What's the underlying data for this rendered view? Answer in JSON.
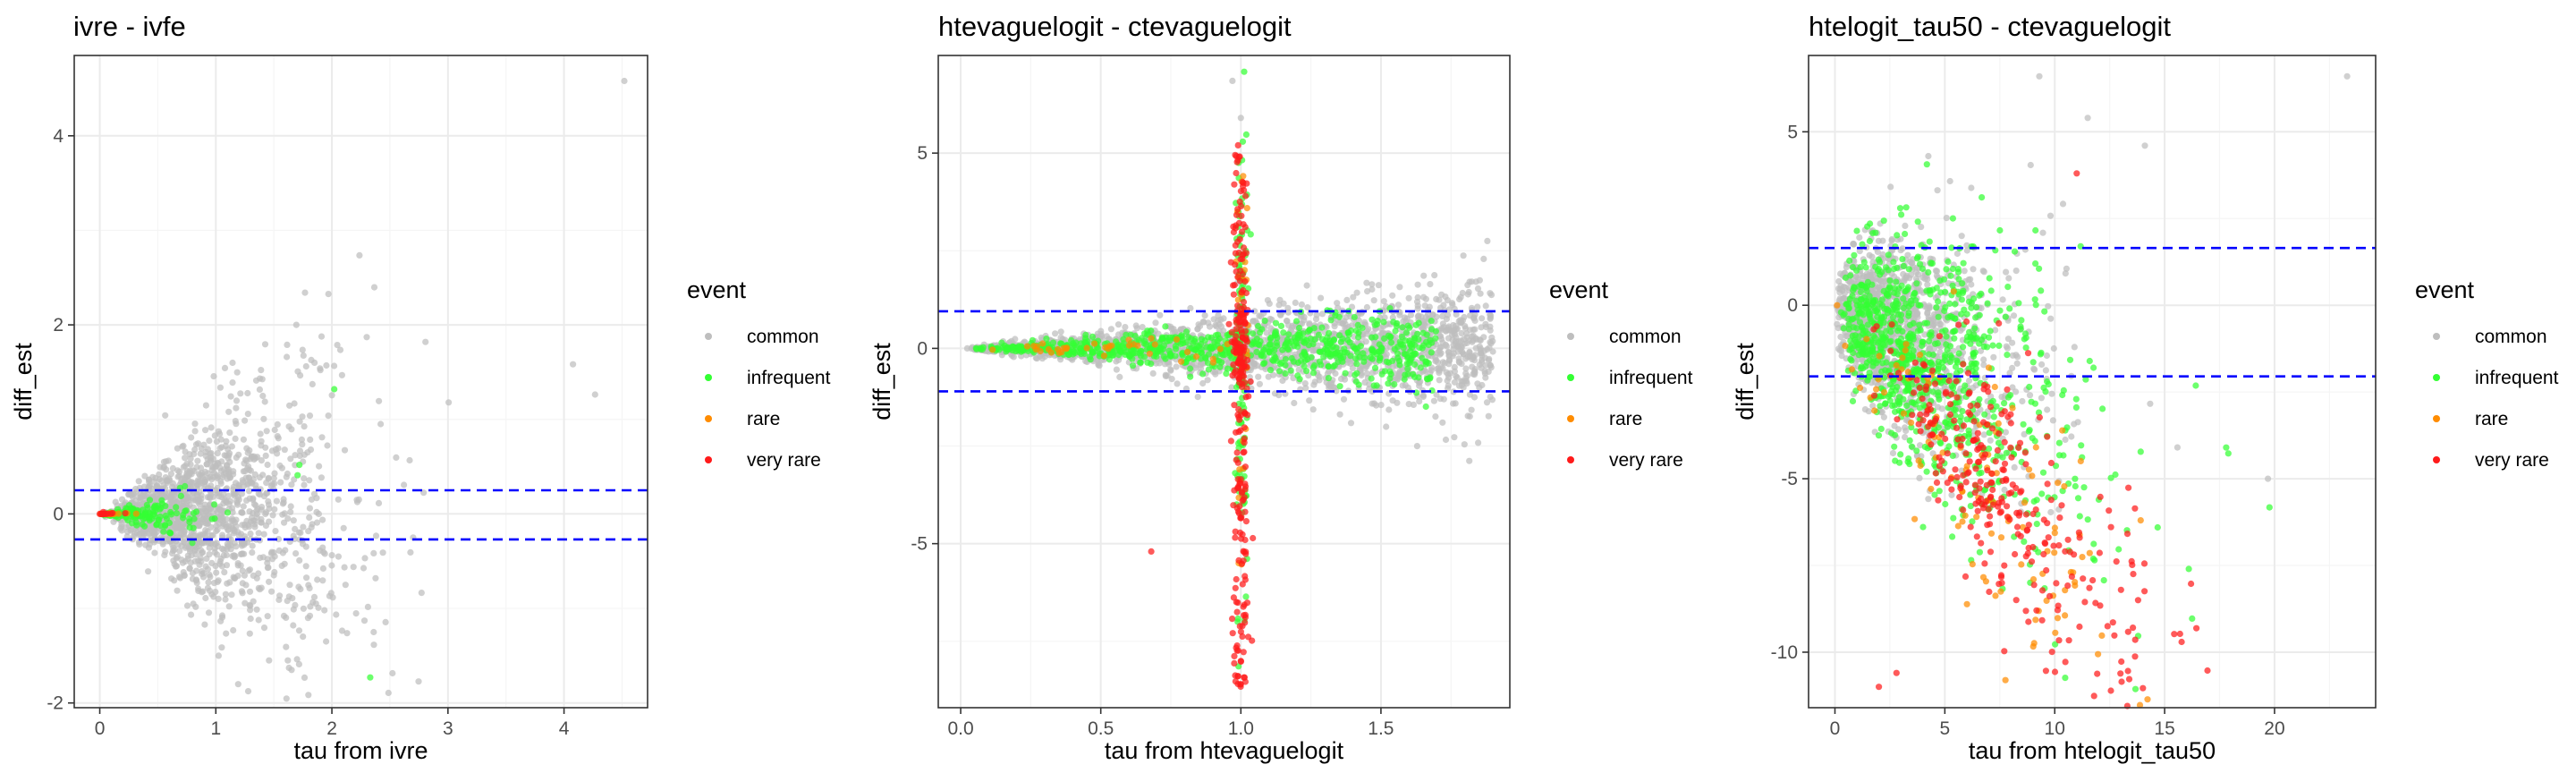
{
  "legend": {
    "title": "event",
    "entries": [
      {
        "label": "common",
        "color": "#bebebe"
      },
      {
        "label": "infrequent",
        "color": "#33ff33"
      },
      {
        "label": "rare",
        "color": "#ff8c00"
      },
      {
        "label": "very rare",
        "color": "#ff1a1a"
      }
    ]
  },
  "colors": {
    "reference_line": "#0000ff",
    "panel_background": "#ffffff",
    "grid_major": "#ebebeb",
    "grid_minor": "#f5f5f5",
    "border": "#333333"
  },
  "chart_data": [
    {
      "type": "scatter",
      "title": "ivre - ivfe",
      "xlabel": "tau from ivre",
      "ylabel": "diff_est",
      "xlim": [
        -0.22,
        4.72
      ],
      "ylim": [
        -2.05,
        4.85
      ],
      "xticks": [
        0,
        1,
        2,
        3,
        4
      ],
      "yticks": [
        -2,
        0,
        2,
        4
      ],
      "hlines": [
        0.25,
        -0.27
      ],
      "grid": true,
      "legend_position": "right",
      "generator": {
        "kind": "funnel",
        "seed": 11,
        "common": {
          "n": 1400,
          "x_dist": "gamma",
          "x_shape": 3.2,
          "x_scale": 0.3,
          "slope": 0.5,
          "power": 1.1,
          "y_center": 0
        },
        "infrequent": {
          "n": 140,
          "x_dist": "gamma",
          "x_shape": 2.5,
          "x_scale": 0.17,
          "slope": 0.18,
          "power": 1.0,
          "y_center": 0
        },
        "rare": {
          "n": 20,
          "x_dist": "gamma",
          "x_shape": 1.2,
          "x_scale": 0.08,
          "slope": 0.05,
          "power": 1.0,
          "y_center": 0
        },
        "very_rare": {
          "n": 10,
          "x_dist": "gamma",
          "x_shape": 1.0,
          "x_scale": 0.05,
          "slope": 0.05,
          "power": 1.0,
          "y_center": 0
        }
      },
      "points": [
        {
          "x": 4.52,
          "y": 4.58,
          "event": "common"
        },
        {
          "x": 2.02,
          "y": 1.32,
          "event": "infrequent"
        },
        {
          "x": 2.33,
          "y": -1.73,
          "event": "infrequent"
        },
        {
          "x": 2.3,
          "y": 1.87,
          "event": "common"
        },
        {
          "x": 1.85,
          "y": 1.6,
          "event": "common"
        },
        {
          "x": 2.42,
          "y": 0.95,
          "event": "common"
        },
        {
          "x": 2.36,
          "y": -1.25,
          "event": "common"
        },
        {
          "x": 1.62,
          "y": -1.55,
          "event": "common"
        },
        {
          "x": 1.95,
          "y": -1.35,
          "event": "common"
        },
        {
          "x": 2.7,
          "y": -0.25,
          "event": "common"
        },
        {
          "x": 0.0,
          "y": 0.0,
          "event": "very rare"
        },
        {
          "x": 0.03,
          "y": 0.02,
          "event": "very rare"
        }
      ]
    },
    {
      "type": "scatter",
      "title": "htevaguelogit - ctevaguelogit",
      "xlabel": "tau from htevaguelogit",
      "ylabel": "diff_est",
      "xlim": [
        -0.08,
        1.96
      ],
      "ylim": [
        -9.2,
        7.5
      ],
      "xticks": [
        0.0,
        0.5,
        1.0,
        1.5
      ],
      "yticks": [
        -5,
        0,
        5
      ],
      "hlines": [
        0.95,
        -1.1
      ],
      "grid": true,
      "legend_position": "right",
      "generator": {
        "kind": "fan_cross",
        "seed": 23,
        "common": {
          "n": 1800,
          "x_range": [
            0.02,
            1.9
          ],
          "fan_slope": 0.45
        },
        "infrequent": {
          "n": 700,
          "x_range": [
            0.05,
            1.7
          ],
          "fan_slope": 0.3,
          "vertical_n": 120
        },
        "rare": {
          "n": 40,
          "x_range": [
            0.1,
            1.1
          ],
          "fan_slope": 0.2,
          "vertical_n": 25
        },
        "very_rare": {
          "n": 260,
          "vertical_x": 1.0,
          "vertical_spread": 0.015,
          "y_range": [
            -8.7,
            5.2
          ]
        }
      },
      "points": [
        {
          "x": 0.97,
          "y": 6.85,
          "event": "common"
        },
        {
          "x": 1.0,
          "y": 5.9,
          "event": "common"
        },
        {
          "x": 0.99,
          "y": 5.2,
          "event": "very rare"
        },
        {
          "x": 0.98,
          "y": 4.95,
          "event": "very rare"
        },
        {
          "x": 0.68,
          "y": -5.2,
          "event": "very rare"
        },
        {
          "x": 1.88,
          "y": 2.75,
          "event": "common"
        },
        {
          "x": 1.72,
          "y": -1.9,
          "event": "common"
        },
        {
          "x": 1.0,
          "y": -8.6,
          "event": "very rare"
        }
      ]
    },
    {
      "type": "scatter",
      "title": "htelogit_tau50 - ctevaguelogit",
      "xlabel": "tau from htelogit_tau50",
      "ylabel": "diff_est",
      "xlim": [
        -1.2,
        24.6
      ],
      "ylim": [
        -11.6,
        7.2
      ],
      "xticks": [
        0,
        5,
        10,
        15,
        20
      ],
      "yticks": [
        -10,
        -5,
        0,
        5
      ],
      "hlines": [
        1.65,
        -2.05
      ],
      "grid": true,
      "legend_position": "right",
      "generator": {
        "kind": "spread",
        "seed": 37,
        "common": {
          "n": 1300,
          "x_dist": "gamma",
          "x_shape": 2.0,
          "x_scale": 1.6,
          "slope": -0.25,
          "spread": 0.45
        },
        "infrequent": {
          "n": 900,
          "x_dist": "gamma",
          "x_shape": 2.2,
          "x_scale": 2.0,
          "slope": -0.4,
          "spread": 0.5
        },
        "rare": {
          "n": 120,
          "x_dist": "gamma",
          "x_shape": 3.5,
          "x_scale": 1.9,
          "slope": -0.8,
          "spread": 0.45
        },
        "very_rare": {
          "n": 300,
          "x_dist": "gamma",
          "x_shape": 5.0,
          "x_scale": 1.6,
          "slope": -0.7,
          "spread": 0.35
        }
      },
      "points": [
        {
          "x": 23.3,
          "y": 6.6,
          "event": "common"
        },
        {
          "x": 14.1,
          "y": 4.6,
          "event": "common"
        },
        {
          "x": 11.5,
          "y": 5.4,
          "event": "common"
        },
        {
          "x": 11.0,
          "y": 3.8,
          "event": "very rare"
        },
        {
          "x": 9.3,
          "y": 6.6,
          "event": "common"
        },
        {
          "x": 19.7,
          "y": -5.0,
          "event": "common"
        },
        {
          "x": 17.8,
          "y": -4.1,
          "event": "infrequent"
        },
        {
          "x": 2.0,
          "y": -11.0,
          "event": "very rare"
        },
        {
          "x": 2.8,
          "y": -10.6,
          "event": "very rare"
        },
        {
          "x": 0.1,
          "y": 0.0,
          "event": "rare"
        },
        {
          "x": 16.1,
          "y": -7.6,
          "event": "infrequent"
        }
      ]
    }
  ]
}
